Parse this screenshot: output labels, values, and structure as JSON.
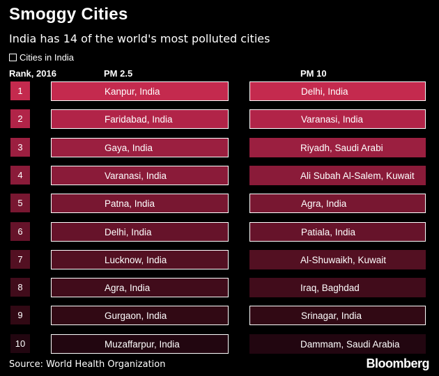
{
  "title": "Smoggy Cities",
  "subtitle": "India has 14 of the world's most polluted cities",
  "legend": {
    "label": "Cities in India"
  },
  "columns": {
    "rank": "Rank, 2016",
    "pm25": "PM 2.5",
    "pm10": "PM 10"
  },
  "colors": [
    "#c42a4e",
    "#b12448",
    "#9b1f40",
    "#8a1b39",
    "#781731",
    "#66132a",
    "#531022",
    "#410c1b",
    "#310914",
    "#220610"
  ],
  "chart_data": {
    "type": "table",
    "title": "Smoggy Cities",
    "subtitle": "India has 14 of the world's most polluted cities",
    "columns": [
      "Rank, 2016",
      "PM 2.5",
      "PM 10"
    ],
    "rows": [
      {
        "rank": "1",
        "pm25": "Kanpur, India",
        "pm25_india": true,
        "pm10": "Delhi, India",
        "pm10_india": true
      },
      {
        "rank": "2",
        "pm25": "Faridabad, India",
        "pm25_india": true,
        "pm10": "Varanasi, India",
        "pm10_india": true
      },
      {
        "rank": "3",
        "pm25": "Gaya, India",
        "pm25_india": true,
        "pm10": "Riyadh, Saudi Arabi",
        "pm10_india": false
      },
      {
        "rank": "4",
        "pm25": "Varanasi, India",
        "pm25_india": true,
        "pm10": "Ali Subah Al-Salem, Kuwait",
        "pm10_india": false
      },
      {
        "rank": "5",
        "pm25": "Patna, India",
        "pm25_india": true,
        "pm10": "Agra, India",
        "pm10_india": true
      },
      {
        "rank": "6",
        "pm25": "Delhi, India",
        "pm25_india": true,
        "pm10": "Patiala, India",
        "pm10_india": true
      },
      {
        "rank": "7",
        "pm25": "Lucknow, India",
        "pm25_india": true,
        "pm10": "Al-Shuwaikh, Kuwait",
        "pm10_india": false
      },
      {
        "rank": "8",
        "pm25": "Agra, India",
        "pm25_india": true,
        "pm10": "Iraq, Baghdad",
        "pm10_india": false
      },
      {
        "rank": "9",
        "pm25": "Gurgaon, India",
        "pm25_india": true,
        "pm10": "Srinagar, India",
        "pm10_india": true
      },
      {
        "rank": "10",
        "pm25": "Muzaffarpur, India",
        "pm25_india": true,
        "pm10": "Dammam, Saudi Arabia",
        "pm10_india": false
      }
    ]
  },
  "source": "Source: World Health Organization",
  "brand": "Bloomberg"
}
